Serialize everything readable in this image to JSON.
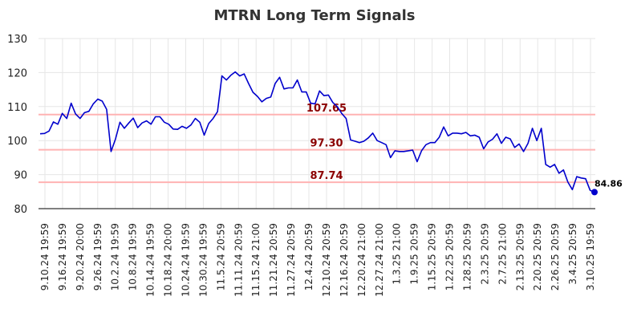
{
  "chart_data": {
    "type": "line",
    "title": "MTRN Long Term Signals",
    "ylim": [
      80,
      130
    ],
    "yticks": [
      80,
      90,
      100,
      110,
      120,
      130
    ],
    "grid": true,
    "line_color": "#0000cc",
    "signal_color": "#ffb3b3",
    "signal_label_color": "#8b0000",
    "x_tick_labels": [
      "9.10.24 19:59",
      "9.16.24 19:59",
      "9.20.24 20:00",
      "9.26.24 19:59",
      "10.2.24 19:59",
      "10.8.24 19:59",
      "10.14.24 19:59",
      "10.18.24 20:00",
      "10.24.24 19:59",
      "10.30.24 19:59",
      "11.5.24 20:59",
      "11.11.24 20:59",
      "11.15.24 21:00",
      "11.21.24 20:59",
      "11.27.24 20:59",
      "12.4.24 20:59",
      "12.10.24 20:59",
      "12.16.24 20:59",
      "12.20.24 21:00",
      "12.27.24 21:00",
      "1.3.25 21:00",
      "1.9.25 20:59",
      "1.15.25 20:59",
      "1.22.25 20:59",
      "1.28.25 20:59",
      "2.3.25 20:59",
      "2.7.25 21:00",
      "2.13.25 20:59",
      "2.20.25 20:59",
      "2.26.25 20:59",
      "3.4.25 20:59",
      "3.10.25 19:59"
    ],
    "signals": [
      {
        "value": 107.65,
        "label": "107.65"
      },
      {
        "value": 97.3,
        "label": "97.30"
      },
      {
        "value": 87.74,
        "label": "87.74"
      }
    ],
    "last_value": 84.86,
    "last_label": "84.86",
    "values": [
      102.0,
      102.1,
      102.8,
      105.5,
      104.8,
      108.0,
      106.5,
      111.0,
      107.8,
      106.5,
      108.2,
      108.6,
      110.8,
      112.2,
      111.6,
      109.2,
      96.8,
      100.5,
      105.4,
      103.6,
      105.2,
      106.6,
      103.8,
      105.2,
      105.8,
      104.8,
      107.0,
      107.0,
      105.4,
      104.8,
      103.4,
      103.3,
      104.2,
      103.6,
      104.6,
      106.5,
      105.4,
      101.6,
      105.0,
      106.5,
      108.5,
      119.0,
      117.8,
      119.2,
      120.2,
      119.0,
      119.6,
      116.8,
      114.2,
      113.0,
      111.4,
      112.4,
      112.8,
      116.8,
      118.6,
      115.2,
      115.5,
      115.5,
      117.8,
      114.3,
      114.3,
      111.0,
      110.8,
      114.6,
      113.2,
      113.4,
      111.2,
      110.0,
      108.0,
      106.5,
      100.2,
      99.8,
      99.4,
      99.8,
      100.8,
      102.2,
      100.0,
      99.4,
      98.8,
      95.0,
      97.0,
      96.8,
      96.8,
      97.0,
      97.2,
      93.8,
      97.0,
      98.8,
      99.4,
      99.4,
      101.0,
      104.0,
      101.4,
      102.2,
      102.2,
      102.0,
      102.4,
      101.4,
      101.6,
      101.0,
      97.6,
      99.6,
      100.4,
      102.0,
      99.2,
      101.0,
      100.5,
      98.0,
      99.0,
      96.8,
      99.2,
      103.6,
      100.0,
      103.6,
      93.0,
      92.2,
      93.0,
      90.4,
      91.4,
      87.8,
      85.6,
      89.4,
      89.0,
      88.8,
      85.4,
      84.86
    ]
  }
}
